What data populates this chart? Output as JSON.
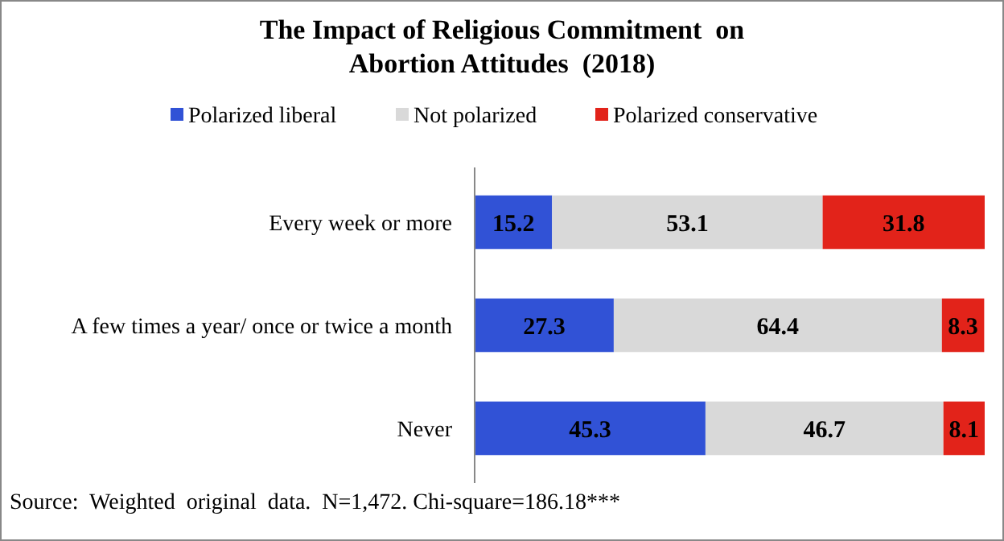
{
  "chart_data": {
    "type": "bar",
    "orientation": "horizontal",
    "stacked": true,
    "title": "The Impact of Religious Commitment  on Abortion Attitudes  (2018)",
    "categories": [
      "Every week or more",
      "A few times a year/ once or twice a month",
      "Never"
    ],
    "series": [
      {
        "name": "Polarized liberal",
        "color": "#3152d6",
        "values": [
          15.2,
          27.3,
          45.3
        ]
      },
      {
        "name": "Not polarized",
        "color": "#d9d9d9",
        "values": [
          53.1,
          64.4,
          46.7
        ]
      },
      {
        "name": "Polarized conservative",
        "color": "#e2231a",
        "values": [
          31.8,
          8.3,
          8.1
        ]
      }
    ],
    "data_labels": true,
    "legend": "top",
    "tick_labels": "y",
    "annotations": [
      "Source:  Weighted  original  data.  N=1,472. Chi-square=186.18***"
    ]
  }
}
